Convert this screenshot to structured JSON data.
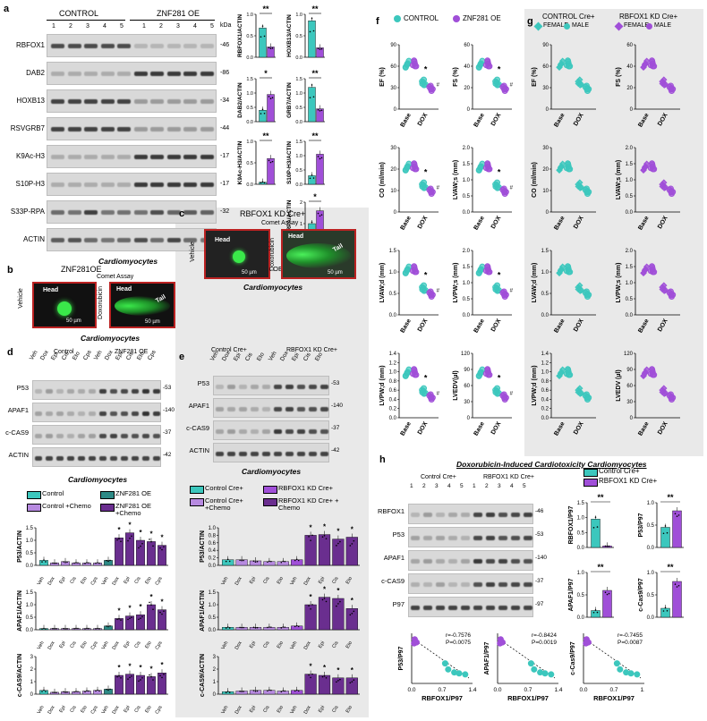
{
  "colors": {
    "control": "#3cc7bd",
    "znf": "#a04fd8",
    "control_dark": "#2d8a86",
    "znf_dark": "#6a2e8f",
    "chemo_light": "#b78ae0",
    "gray_panel": "#e6e6e6"
  },
  "panel_a": {
    "letter": "a",
    "group1": "CONTROL",
    "group2": "ZNF281 OE",
    "lanes": [
      "1",
      "2",
      "3",
      "4",
      "5",
      "1",
      "2",
      "3",
      "4",
      "5"
    ],
    "kda": "kDa",
    "rows": [
      {
        "label": "RBFOX1",
        "kda": "-46"
      },
      {
        "label": "DAB2",
        "kda": "-86"
      },
      {
        "label": "HOXB13",
        "kda": "-34"
      },
      {
        "label": "RSVGRB7",
        "kda": "-44"
      },
      {
        "label": "K9Ac-H3",
        "kda": "-17"
      },
      {
        "label": "S10P-H3",
        "kda": "-17"
      },
      {
        "label": "S33P-RPA",
        "kda": "-32"
      },
      {
        "label": "ACTIN",
        "kda": "-42"
      }
    ],
    "caption": "Cardiomyocytes",
    "bars": [
      {
        "ylabel": "RBFOX1/ACTIN",
        "sig": "**",
        "ticks": [
          "0.0",
          "0.5",
          "1.0"
        ],
        "values": [
          0.68,
          0.24
        ]
      },
      {
        "ylabel": "HOXB13/ACTIN",
        "sig": "**",
        "ticks": [
          "0.0",
          "0.5",
          "1.0"
        ],
        "values": [
          0.85,
          0.22
        ]
      },
      {
        "ylabel": "DAB2/ACTIN",
        "sig": "*",
        "ticks": [
          "0.0",
          "0.5",
          "1.0",
          "1.5"
        ],
        "values": [
          0.4,
          0.95
        ]
      },
      {
        "ylabel": "GRB7/ACTIN",
        "sig": "**",
        "ticks": [
          "0.0",
          "0.5",
          "1.0",
          "1.5"
        ],
        "values": [
          1.2,
          0.45
        ]
      },
      {
        "ylabel": "K9Ac-H3/ACTIN",
        "sig": "**",
        "ticks": [
          "0.0",
          "0.5",
          "1.0"
        ],
        "values": [
          0.05,
          0.6
        ]
      },
      {
        "ylabel": "S10P-H3/ACTIN",
        "sig": "**",
        "ticks": [
          "0.0",
          "0.5",
          "1.0",
          "1.5"
        ],
        "values": [
          0.3,
          1.05
        ]
      },
      {
        "ylabel": "S33P-RPA/ACTIN",
        "sig": "*",
        "ticks": [
          "0",
          "1",
          "2"
        ],
        "values": [
          1.0,
          1.6
        ]
      }
    ],
    "legend": [
      "Control",
      "ZNF281 OE"
    ]
  },
  "panel_b": {
    "letter": "b",
    "title": "ZNF281OE",
    "assay": "Comet Assay",
    "vehicle": "Vehicle",
    "doxo": "Doxorubicin",
    "head": "Head",
    "tail": "Tail",
    "scale": "50 µm",
    "caption": "Cardiomyocytes"
  },
  "panel_c": {
    "letter": "c",
    "title": "RBFOX1 KD Cre+",
    "assay": "Comet Assay",
    "vehicle": "Vehicle",
    "doxo": "Doxorubicin",
    "head": "Head",
    "tail": "Tail",
    "scale": "50 µm",
    "caption": "Cardiomyocytes"
  },
  "panel_d": {
    "letter": "d",
    "group1": "Control",
    "group2": "ZNF281 OE",
    "lanes": [
      "Veh",
      "Dox",
      "Epi",
      "Cis",
      "Eto",
      "Cps",
      "Veh",
      "Dox",
      "Epi",
      "Cis",
      "Eto",
      "Cps"
    ],
    "rows": [
      {
        "label": "P53",
        "kda": "-53"
      },
      {
        "label": "APAF1",
        "kda": "-140"
      },
      {
        "label": "c-CAS9",
        "kda": "-37"
      },
      {
        "label": "ACTIN",
        "kda": "-42"
      }
    ],
    "caption": "Cardiomyocytes",
    "legend": [
      "Control",
      "ZNF281 OE",
      "Control +Chemo",
      "ZNF281 OE +Chemo"
    ],
    "charts": [
      {
        "ylabel": "P53/ACTIN",
        "ticks": [
          "0.0",
          "0.5",
          "1.0",
          "1.5"
        ],
        "values": [
          0.2,
          0.1,
          0.15,
          0.1,
          0.1,
          0.1,
          0.2,
          1.1,
          1.3,
          1.0,
          0.95,
          0.8
        ]
      },
      {
        "ylabel": "APAF1/ACTIN",
        "ticks": [
          "0.0",
          "0.5",
          "1.0",
          "1.5"
        ],
        "values": [
          0.05,
          0.05,
          0.05,
          0.05,
          0.05,
          0.05,
          0.15,
          0.45,
          0.55,
          0.6,
          1.0,
          0.8
        ]
      },
      {
        "ylabel": "c-CAS9/ACTIN",
        "ticks": [
          "0",
          "1",
          "2",
          "3"
        ],
        "values": [
          0.3,
          0.15,
          0.2,
          0.2,
          0.25,
          0.3,
          0.4,
          1.5,
          1.6,
          1.5,
          1.4,
          1.7
        ]
      }
    ],
    "xlabels": [
      "Veh",
      "Dox",
      "Epi",
      "Cis",
      "Eto",
      "Cps",
      "Veh",
      "Dox",
      "Epi",
      "Cis",
      "Eto",
      "Cps"
    ]
  },
  "panel_e": {
    "letter": "e",
    "group1": "Control Cre+",
    "group2": "RBFOX1 KD Cre+",
    "lanes": [
      "Veh",
      "Dox",
      "Epi",
      "Cis",
      "Eto",
      "Veh",
      "Dox",
      "Epi",
      "Cis",
      "Eto"
    ],
    "rows": [
      {
        "label": "P53",
        "kda": "-53"
      },
      {
        "label": "APAF1",
        "kda": "-140"
      },
      {
        "label": "c-CAS9",
        "kda": "-37"
      },
      {
        "label": "ACTIN",
        "kda": "-42"
      }
    ],
    "caption": "Cardiomyocytes",
    "legend": [
      "Control Cre+",
      "RBFOX1 KD Cre+",
      "Control Cre+ +Chemo",
      "RBFOX1 KD Cre+ + Chemo"
    ],
    "charts": [
      {
        "ylabel": "P53/ACTIN",
        "ticks": [
          "0.0",
          "0.2",
          "0.4",
          "0.6",
          "0.8",
          "1.0"
        ],
        "values": [
          0.15,
          0.15,
          0.12,
          0.1,
          0.1,
          0.15,
          0.8,
          0.82,
          0.7,
          0.75
        ]
      },
      {
        "ylabel": "APAF1/ACTIN",
        "ticks": [
          "0.0",
          "0.5",
          "1.0",
          "1.5"
        ],
        "values": [
          0.1,
          0.1,
          0.1,
          0.1,
          0.1,
          0.15,
          1.0,
          1.3,
          1.25,
          0.85
        ]
      },
      {
        "ylabel": "c-CAS9/ACTIN",
        "ticks": [
          "0",
          "1",
          "2",
          "3"
        ],
        "values": [
          0.2,
          0.25,
          0.3,
          0.3,
          0.25,
          0.3,
          1.6,
          1.5,
          1.3,
          1.3
        ]
      }
    ],
    "xlabels": [
      "Veh",
      "Dox",
      "Epi",
      "Cis",
      "Eto",
      "Veh",
      "Dox",
      "Epi",
      "Cis",
      "Eto"
    ]
  },
  "panel_f": {
    "letter": "f",
    "legend": [
      "CONTROL",
      "ZNF281 OE"
    ],
    "plots": [
      {
        "ylabel": "EF (%)",
        "ticks": [
          "0",
          "30",
          "60",
          "90"
        ],
        "sig": "*",
        "alt": "#"
      },
      {
        "ylabel": "FS (%)",
        "ticks": [
          "0",
          "20",
          "40",
          "60"
        ],
        "sig": "*",
        "alt": "#"
      },
      {
        "ylabel": "CO (ml/min)",
        "ticks": [
          "0",
          "10",
          "20",
          "30"
        ],
        "sig": "*",
        "alt": "#"
      },
      {
        "ylabel": "LVAW;s (mm)",
        "ticks": [
          "0.0",
          "0.5",
          "1.0",
          "1.5",
          "2.0"
        ],
        "sig": "*",
        "alt": "#"
      },
      {
        "ylabel": "LVAW;d (mm)",
        "ticks": [
          "0.0",
          "0.5",
          "1.0",
          "1.5"
        ],
        "sig": "*",
        "alt": "#"
      },
      {
        "ylabel": "LVPW;s (mm)",
        "ticks": [
          "0.0",
          "0.5",
          "1.0",
          "1.5",
          "2.0"
        ],
        "sig": "*",
        "alt": "#"
      },
      {
        "ylabel": "LVPW;d (mm)",
        "ticks": [
          "0.0",
          "0.2",
          "0.4",
          "0.6",
          "0.8",
          "1.0",
          "1.2",
          "1.4"
        ],
        "sig": "*",
        "alt": "#"
      },
      {
        "ylabel": "LVEDV(µl)",
        "ticks": [
          "0",
          "30",
          "60",
          "90",
          "120"
        ],
        "sig": "*",
        "alt": "#"
      }
    ],
    "xcats": [
      "Base",
      "DOX"
    ]
  },
  "panel_g": {
    "letter": "g",
    "group1": "CONTROL Cre+",
    "group2": "RBFOX1 KD Cre+",
    "legend": [
      "FEMALE",
      "MALE",
      "FEMALE",
      "MALE"
    ],
    "plots": [
      {
        "ylabel": "EF (%)",
        "ticks": [
          "0",
          "30",
          "60",
          "90"
        ]
      },
      {
        "ylabel": "FS (%)",
        "ticks": [
          "0",
          "20",
          "40",
          "60"
        ]
      },
      {
        "ylabel": "CO (ml/min)",
        "ticks": [
          "0",
          "10",
          "20",
          "30"
        ]
      },
      {
        "ylabel": "LVAW;s (mm)",
        "ticks": [
          "0.0",
          "0.5",
          "1.0",
          "1.5",
          "2.0"
        ]
      },
      {
        "ylabel": "LVAW;d (mm)",
        "ticks": [
          "0.0",
          "0.5",
          "1.0",
          "1.5"
        ]
      },
      {
        "ylabel": "LVPW;s (mm)",
        "ticks": [
          "0.0",
          "0.5",
          "1.0",
          "1.5",
          "2.0"
        ]
      },
      {
        "ylabel": "LVPW;d (mm)",
        "ticks": [
          "0.0",
          "0.2",
          "0.4",
          "0.6",
          "0.8",
          "1.0",
          "1.2",
          "1.4"
        ]
      },
      {
        "ylabel": "LVEDV (µl)",
        "ticks": [
          "0",
          "30",
          "60",
          "90",
          "120"
        ]
      }
    ],
    "xcats": [
      "Base",
      "DOX"
    ]
  },
  "panel_h": {
    "letter": "h",
    "title": "Doxorubicin-Induced Cardiotoxicity Cardiomyocytes",
    "group1": "Control Cre+",
    "group2": "RBFOX1 KD Cre+",
    "lanes": [
      "1",
      "2",
      "3",
      "4",
      "5",
      "1",
      "2",
      "3",
      "4",
      "5"
    ],
    "rows": [
      {
        "label": "RBFOX1",
        "kda": "-46"
      },
      {
        "label": "P53",
        "kda": "-53"
      },
      {
        "label": "APAF1",
        "kda": "-140"
      },
      {
        "label": "c-CAS9",
        "kda": "-37"
      },
      {
        "label": "P97",
        "kda": "-97"
      }
    ],
    "legend": [
      "Control Cre+",
      "RBFOX1 KD Cre+"
    ],
    "bars": [
      {
        "ylabel": "RBFOX1/P97",
        "ticks": [
          "0.0",
          "0.5",
          "1.0",
          "1.5"
        ],
        "values": [
          0.95,
          0.05
        ],
        "sig": "**"
      },
      {
        "ylabel": "P53/P97",
        "ticks": [
          "0.0",
          "0.5",
          "1.0"
        ],
        "values": [
          0.45,
          0.82
        ],
        "sig": "**"
      },
      {
        "ylabel": "APAF1/P97",
        "ticks": [
          "0.0",
          "0.5",
          "1.0"
        ],
        "values": [
          0.15,
          0.6
        ],
        "sig": "**"
      },
      {
        "ylabel": "c-Cas9/P97",
        "ticks": [
          "0.0",
          "0.5",
          "1.0"
        ],
        "values": [
          0.2,
          0.8
        ],
        "sig": "**"
      }
    ],
    "scatters": [
      {
        "ylabel": "P53/P97",
        "r": "r=-0.7576",
        "p": "P=0.0075"
      },
      {
        "ylabel": "APAF1/P97",
        "r": "r=-0.8424",
        "p": "P=0.0019"
      },
      {
        "ylabel": "c-Cas9/P97",
        "r": "r=-0.7455",
        "p": "P=0.0087"
      }
    ],
    "xlabel": "RBFOX1/P97",
    "xticks": [
      "0.0",
      "0.7",
      "1.4"
    ]
  }
}
